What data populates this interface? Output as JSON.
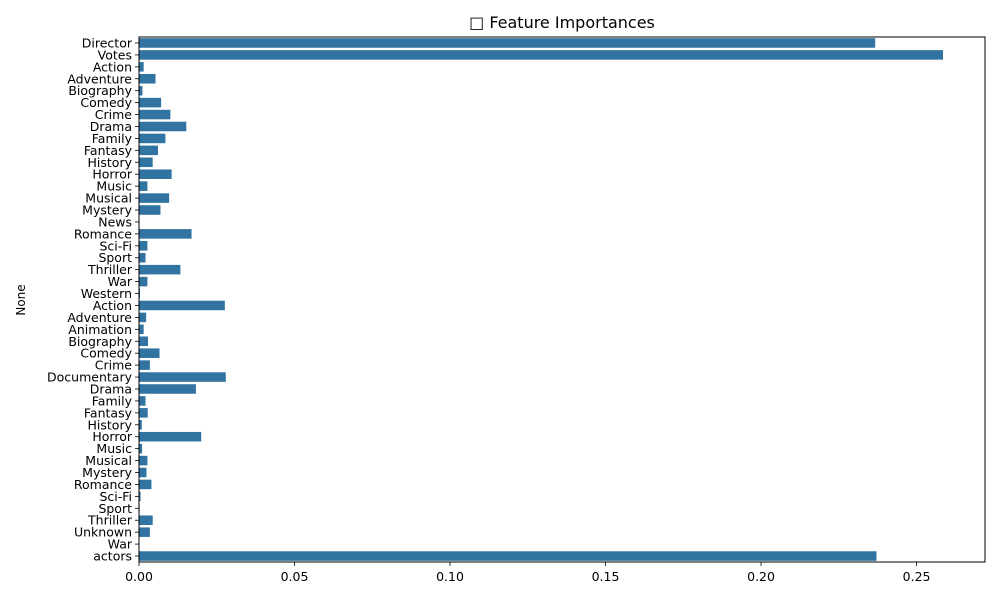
{
  "chart_data": {
    "type": "bar",
    "orientation": "horizontal",
    "title": "□ Feature Importances",
    "xlabel": "",
    "ylabel": "None",
    "xlim": [
      0,
      0.272
    ],
    "grid": false,
    "legend": "none",
    "bar_color": "#3274a1",
    "x_ticks": [
      {
        "value": 0.0,
        "label": "0.00"
      },
      {
        "value": 0.05,
        "label": "0.05"
      },
      {
        "value": 0.1,
        "label": "0.10"
      },
      {
        "value": 0.15,
        "label": "0.15"
      },
      {
        "value": 0.2,
        "label": "0.20"
      },
      {
        "value": 0.25,
        "label": "0.25"
      }
    ],
    "categories": [
      "Director",
      "Votes",
      "Action",
      "Adventure",
      "Biography",
      "Comedy",
      "Crime",
      "Drama",
      "Family",
      "Fantasy",
      "History",
      "Horror",
      "Music",
      "Musical",
      "Mystery",
      "News",
      "Romance",
      "Sci-Fi",
      "Sport",
      "Thriller",
      "War",
      "Western",
      "Action",
      "Adventure",
      "Animation",
      "Biography",
      "Comedy",
      "Crime",
      "Documentary",
      "Drama",
      "Family",
      "Fantasy",
      "History",
      "Horror",
      "Music",
      "Musical",
      "Mystery",
      "Romance",
      "Sci-Fi",
      "Sport",
      "Thriller",
      "Unknown",
      "War",
      "actors"
    ],
    "values": [
      0.2367,
      0.2585,
      0.0015,
      0.0053,
      0.0011,
      0.0071,
      0.0101,
      0.0152,
      0.0085,
      0.0061,
      0.0044,
      0.0105,
      0.0027,
      0.0097,
      0.0069,
      0.0,
      0.0169,
      0.0027,
      0.0021,
      0.0133,
      0.0027,
      0.0003,
      0.0276,
      0.0023,
      0.0015,
      0.0029,
      0.0066,
      0.0035,
      0.0279,
      0.0183,
      0.0021,
      0.0028,
      0.0009,
      0.02,
      0.001,
      0.0027,
      0.0024,
      0.004,
      0.0005,
      0.0002,
      0.0044,
      0.0035,
      0.0001,
      0.2371
    ]
  }
}
